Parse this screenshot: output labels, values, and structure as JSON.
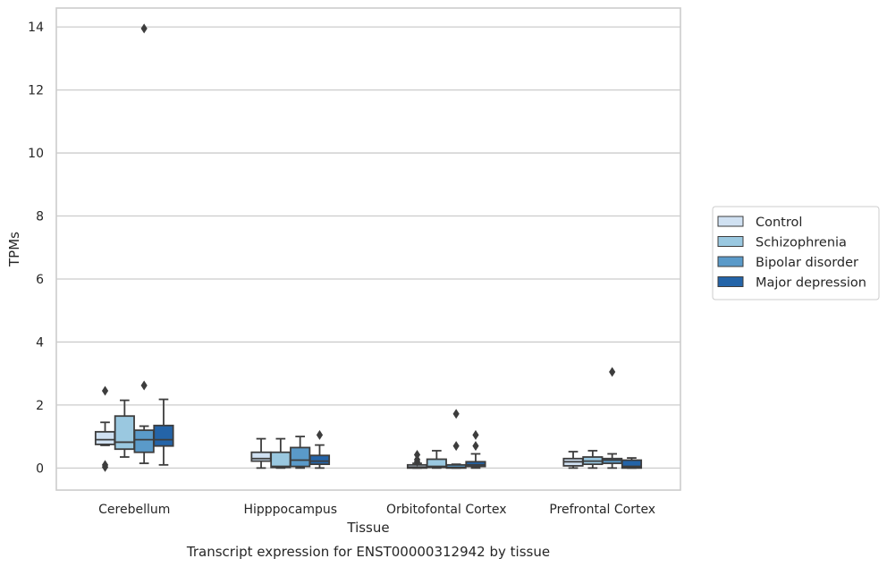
{
  "chart_data": {
    "type": "box",
    "title": "Transcript expression for ENST00000312942 by tissue",
    "xlabel": "Tissue",
    "ylabel": "TPMs",
    "ylim": [
      -0.7,
      14.6
    ],
    "yticks": [
      0,
      2,
      4,
      6,
      8,
      10,
      12,
      14
    ],
    "grid": "horizontal",
    "legend_position": "right",
    "categories": [
      "Cerebellum",
      "Hipppocampus",
      "Orbitofontal Cortex",
      "Prefrontal Cortex"
    ],
    "series": [
      {
        "name": "Control",
        "color": "#d0e1f2",
        "boxes": [
          {
            "whislo": 0.72,
            "q1": 0.75,
            "med": 0.9,
            "q3": 1.15,
            "whishi": 1.45,
            "fliers": [
              2.45,
              0.1,
              0.03
            ]
          },
          {
            "whislo": 0.0,
            "q1": 0.22,
            "med": 0.3,
            "q3": 0.5,
            "whishi": 0.93,
            "fliers": []
          },
          {
            "whislo": 0.0,
            "q1": 0.0,
            "med": 0.03,
            "q3": 0.1,
            "whishi": 0.15,
            "fliers": [
              0.42,
              0.27,
              0.2
            ]
          },
          {
            "whislo": 0.0,
            "q1": 0.07,
            "med": 0.2,
            "q3": 0.3,
            "whishi": 0.52,
            "fliers": []
          }
        ]
      },
      {
        "name": "Schizophrenia",
        "color": "#9ac8e0",
        "boxes": [
          {
            "whislo": 0.35,
            "q1": 0.6,
            "med": 0.82,
            "q3": 1.65,
            "whishi": 2.15,
            "fliers": []
          },
          {
            "whislo": 0.0,
            "q1": 0.02,
            "med": 0.05,
            "q3": 0.5,
            "whishi": 0.93,
            "fliers": []
          },
          {
            "whislo": 0.0,
            "q1": 0.02,
            "med": 0.05,
            "q3": 0.28,
            "whishi": 0.55,
            "fliers": []
          },
          {
            "whislo": 0.0,
            "q1": 0.12,
            "med": 0.22,
            "q3": 0.35,
            "whishi": 0.55,
            "fliers": []
          }
        ]
      },
      {
        "name": "Bipolar disorder",
        "color": "#5a9ac9",
        "boxes": [
          {
            "whislo": 0.15,
            "q1": 0.5,
            "med": 0.9,
            "q3": 1.2,
            "whishi": 1.33,
            "fliers": [
              13.95,
              2.62
            ]
          },
          {
            "whislo": 0.0,
            "q1": 0.05,
            "med": 0.25,
            "q3": 0.65,
            "whishi": 1.0,
            "fliers": []
          },
          {
            "whislo": 0.0,
            "q1": 0.0,
            "med": 0.02,
            "q3": 0.1,
            "whishi": 0.12,
            "fliers": [
              1.72,
              0.7
            ]
          },
          {
            "whislo": 0.0,
            "q1": 0.15,
            "med": 0.25,
            "q3": 0.3,
            "whishi": 0.45,
            "fliers": [
              3.05
            ]
          }
        ]
      },
      {
        "name": "Major depression",
        "color": "#2464a8",
        "boxes": [
          {
            "whislo": 0.1,
            "q1": 0.7,
            "med": 0.9,
            "q3": 1.35,
            "whishi": 2.18,
            "fliers": []
          },
          {
            "whislo": 0.0,
            "q1": 0.12,
            "med": 0.22,
            "q3": 0.4,
            "whishi": 0.73,
            "fliers": [
              1.05
            ]
          },
          {
            "whislo": 0.0,
            "q1": 0.05,
            "med": 0.1,
            "q3": 0.2,
            "whishi": 0.45,
            "fliers": [
              1.05,
              0.7
            ]
          },
          {
            "whislo": 0.0,
            "q1": 0.0,
            "med": 0.05,
            "q3": 0.25,
            "whishi": 0.32,
            "fliers": []
          }
        ]
      }
    ]
  }
}
